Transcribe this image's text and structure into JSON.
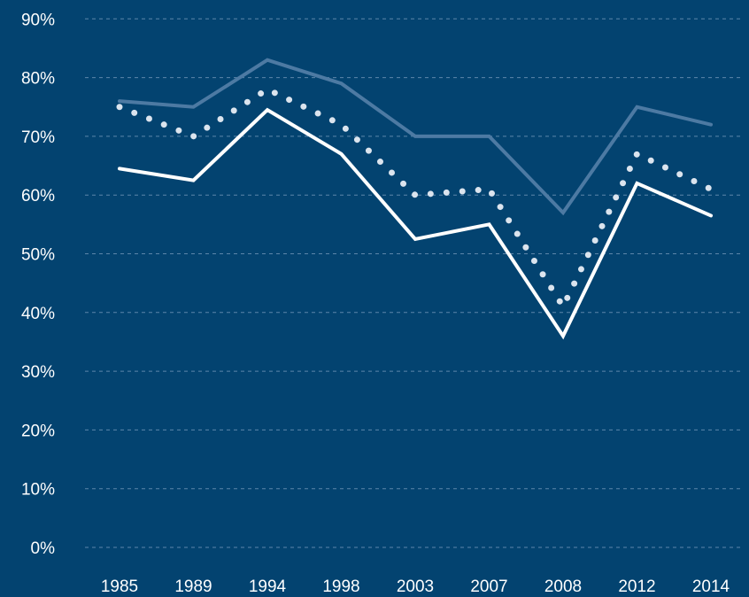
{
  "chart_data": {
    "type": "line",
    "categories": [
      "1985",
      "1989",
      "1994",
      "1998",
      "2003",
      "2007",
      "2008",
      "2012",
      "2014"
    ],
    "yticks": [
      "0%",
      "10%",
      "20%",
      "30%",
      "40%",
      "50%",
      "60%",
      "70%",
      "80%",
      "90%"
    ],
    "ylim": [
      0,
      90
    ],
    "grid": true,
    "title": "",
    "xlabel": "",
    "ylabel": "",
    "series": [
      {
        "style": "solid-faint",
        "color": "#4d7aa3",
        "values": [
          76,
          75,
          83,
          79,
          70,
          70,
          57,
          75,
          72
        ]
      },
      {
        "style": "dotted",
        "color": "#dbe4ee",
        "values": [
          75,
          70,
          78,
          72,
          60,
          61,
          41,
          67,
          61
        ]
      },
      {
        "style": "solid",
        "color": "#ffffff",
        "values": [
          64.5,
          62.5,
          74.5,
          67,
          52.5,
          55,
          36,
          62,
          56.5
        ]
      }
    ]
  }
}
